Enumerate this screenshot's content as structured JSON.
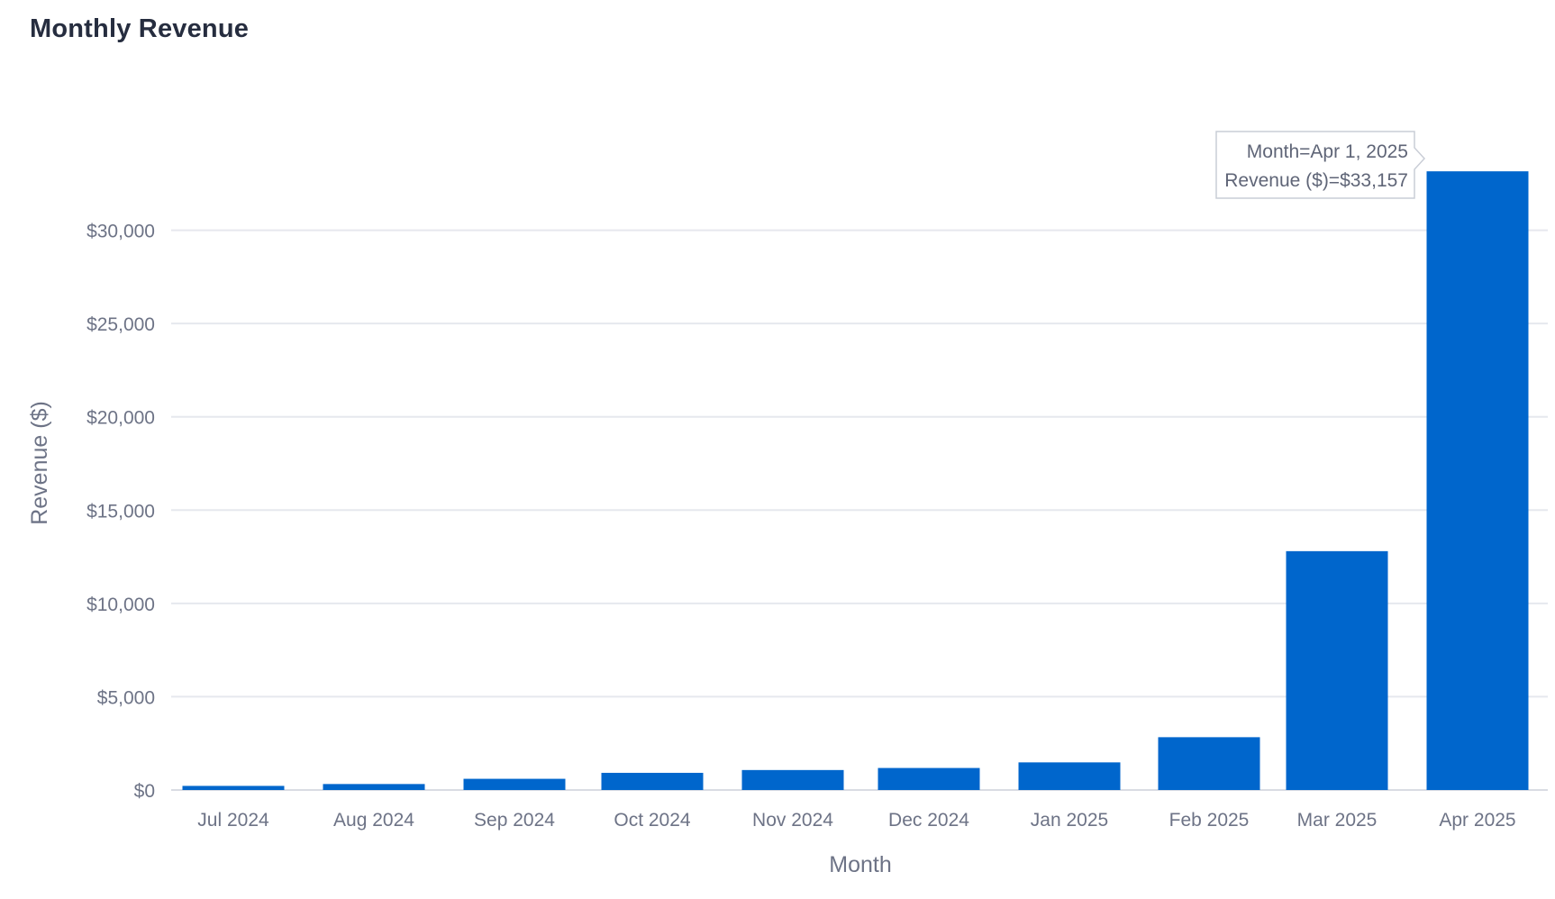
{
  "chart_data": {
    "type": "bar",
    "title": "Monthly Revenue",
    "xlabel": "Month",
    "ylabel": "Revenue ($)",
    "categories": [
      "Jul 2024",
      "Aug 2024",
      "Sep 2024",
      "Oct 2024",
      "Nov 2024",
      "Dec 2024",
      "Jan 2025",
      "Feb 2025",
      "Mar 2025",
      "Apr 2025"
    ],
    "values": [
      220,
      320,
      600,
      920,
      1070,
      1180,
      1480,
      2830,
      12800,
      33157
    ],
    "ylim": [
      0,
      35000
    ],
    "yticks": [
      0,
      5000,
      10000,
      15000,
      20000,
      25000,
      30000
    ],
    "ytick_labels": [
      "$0",
      "$5,000",
      "$10,000",
      "$15,000",
      "$20,000",
      "$25,000",
      "$30,000"
    ],
    "grid": true,
    "bar_color": "#0066cc",
    "grid_color": "#e6e8ee",
    "tooltip": {
      "lines": [
        "Month=Apr 1, 2025",
        "Revenue ($)=$33,157"
      ]
    }
  }
}
